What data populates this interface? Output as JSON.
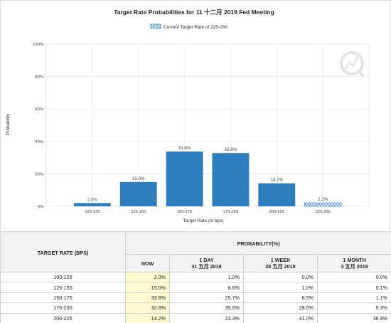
{
  "chart_data": {
    "type": "bar",
    "title": "Target Rate Probabilities for 11 十二月 2019 Fed Meeting",
    "legend": "Current Target Rate of 225-250",
    "xlabel": "Target Rate (in bps)",
    "ylabel": "Probability",
    "ylim": [
      0,
      100
    ],
    "yticks": [
      "0%",
      "20%",
      "40%",
      "60%",
      "80%",
      "100%"
    ],
    "grid": true,
    "categories": [
      "100-125",
      "125-150",
      "150-175",
      "175-200",
      "200-225",
      "225-250"
    ],
    "values": [
      2.0,
      15.0,
      33.8,
      32.8,
      14.2,
      2.2
    ],
    "value_labels": [
      "2.0%",
      "15.0%",
      "33.8%",
      "32.8%",
      "14.2%",
      "2.2%"
    ],
    "current_category": "225-250",
    "colors": {
      "bar": "#2e7ebd",
      "current": "#4a90d9",
      "grid": "#e6e6e6"
    }
  },
  "table": {
    "row_header": "TARGET RATE (BPS)",
    "group_header": "PROBABILITY(%)",
    "columns": [
      {
        "line1": "NOW",
        "line2": ""
      },
      {
        "line1": "1 DAY",
        "line2": "31 五月 2019"
      },
      {
        "line1": "1 WEEK",
        "line2": "28 五月 2019"
      },
      {
        "line1": "1 MONTH",
        "line2": "3 五月 2019"
      }
    ],
    "rows": [
      {
        "rate": "100-125",
        "now": "2.0%",
        "day": "1.0%",
        "week": "0.0%",
        "month": "0.0%"
      },
      {
        "rate": "125-150",
        "now": "15.0%",
        "day": "8.6%",
        "week": "1.0%",
        "month": "0.1%"
      },
      {
        "rate": "150-175",
        "now": "33.8%",
        "day": "25.7%",
        "week": "8.5%",
        "month": "1.1%"
      },
      {
        "rate": "175-200",
        "now": "32.8%",
        "day": "35.6%",
        "week": "28.5%",
        "month": "9.3%"
      },
      {
        "rate": "200-225",
        "now": "14.2%",
        "day": "23.3%",
        "week": "41.0%",
        "month": "36.9%"
      }
    ],
    "now_color": "#fdfbcf"
  }
}
